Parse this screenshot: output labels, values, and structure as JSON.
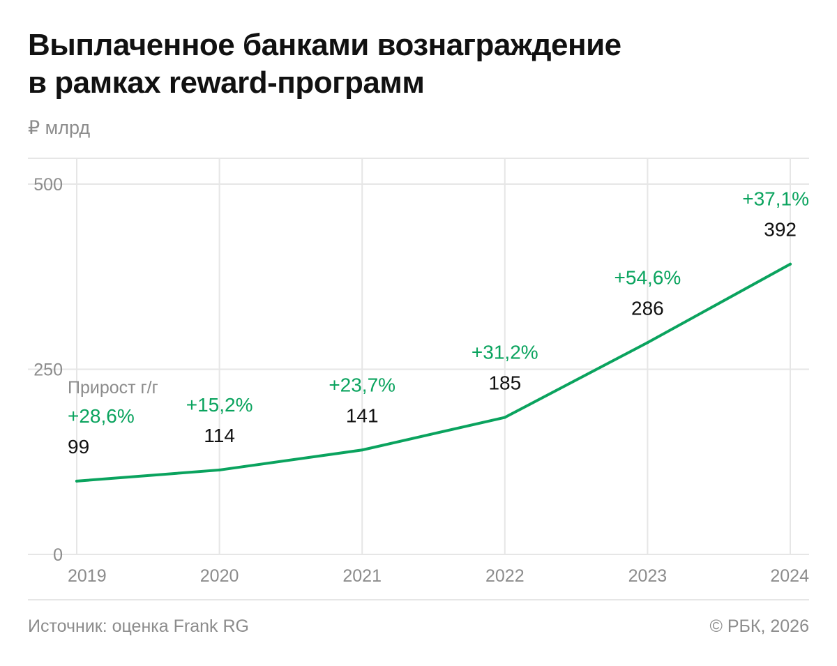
{
  "header": {
    "title_line1": "Выплаченное банками вознаграждение",
    "title_line2": "в рамках reward-программ",
    "unit": "₽ млрд"
  },
  "footer": {
    "source": "Источник: оценка Frank RG",
    "copyright": "© РБК, 2026"
  },
  "colors": {
    "line": "#0aa35e",
    "growth_text": "#0aa35e",
    "value_text": "#111111",
    "axis_text": "#8c8c8c",
    "grid": "#e6e6e6"
  },
  "chart_data": {
    "type": "line",
    "title": "Выплаченное банками вознаграждение в рамках reward-программ",
    "ylabel": "₽ млрд",
    "xlabel": "",
    "x": [
      "2019",
      "2020",
      "2021",
      "2022",
      "2023",
      "2024"
    ],
    "series": [
      {
        "values": [
          99,
          114,
          141,
          185,
          286,
          392
        ]
      }
    ],
    "value_labels": [
      "99",
      "114",
      "141",
      "185",
      "286",
      "392"
    ],
    "growth_caption": "Прирост г/г",
    "growth_labels": [
      "+28,6%",
      "+15,2%",
      "+23,7%",
      "+31,2%",
      "+54,6%",
      "+37,1%"
    ],
    "ylim": [
      0,
      500
    ],
    "yticks": [
      0,
      250,
      500
    ],
    "ytick_labels": [
      "0",
      "250",
      "500"
    ],
    "grid": true
  }
}
